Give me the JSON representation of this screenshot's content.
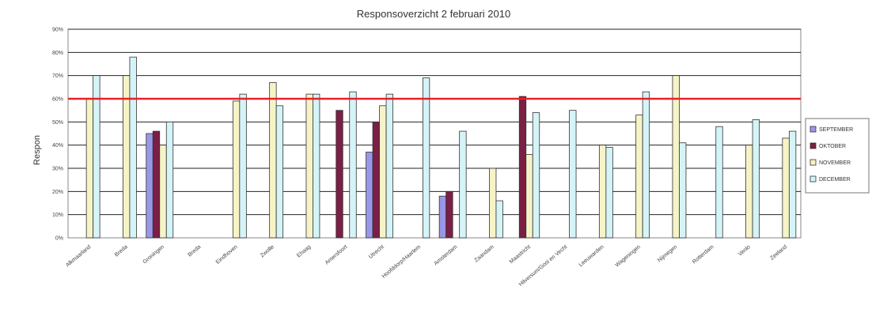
{
  "chart_data": {
    "type": "bar",
    "title": "Responsoverzicht 2 februari 2010",
    "xlabel": "",
    "ylabel": "Respon",
    "ylim": [
      0,
      90
    ],
    "yticks": [
      "0%",
      "10%",
      "20%",
      "30%",
      "40%",
      "50%",
      "60%",
      "70%",
      "80%",
      "90%"
    ],
    "grid": true,
    "legend_position": "right",
    "reference_line": {
      "value": 60,
      "color": "#e8202a"
    },
    "categories": [
      "Alkmaarland",
      "Breda",
      "Groningen",
      "Breda",
      "Eindhoven",
      "Zwolle",
      "Ehaag",
      "Amersfoort",
      "Utrecht",
      "Hoofddorp/Haarlem",
      "Amsterdam",
      "Zaandam",
      "Maastricht",
      "Hilversum/Gooi en Vecht",
      "Leeuwarden",
      "Wageningen",
      "Nijmegen",
      "Rotterdam",
      "Venlo",
      "Zeeland"
    ],
    "series": [
      {
        "name": "SEPTEMBER",
        "color": "#9b97e8",
        "values": [
          null,
          null,
          45,
          null,
          null,
          null,
          null,
          null,
          37,
          null,
          18,
          null,
          null,
          null,
          null,
          null,
          null,
          null,
          null,
          null
        ]
      },
      {
        "name": "OKTOBER",
        "color": "#7a1f45",
        "values": [
          null,
          null,
          46,
          null,
          null,
          null,
          null,
          55,
          50,
          null,
          20,
          null,
          61,
          null,
          null,
          null,
          null,
          null,
          null,
          null
        ]
      },
      {
        "name": "NOVEMBER",
        "color": "#f6f4c6",
        "values": [
          60,
          70,
          40,
          null,
          59,
          67,
          62,
          null,
          57,
          null,
          null,
          30,
          36,
          null,
          40,
          53,
          70,
          null,
          40,
          43
        ]
      },
      {
        "name": "DECEMBER",
        "color": "#d5f4f7",
        "values": [
          70,
          78,
          50,
          null,
          62,
          57,
          62,
          63,
          62,
          69,
          46,
          16,
          54,
          55,
          39,
          63,
          41,
          48,
          51,
          46
        ]
      }
    ],
    "extra_bars_note": ""
  }
}
